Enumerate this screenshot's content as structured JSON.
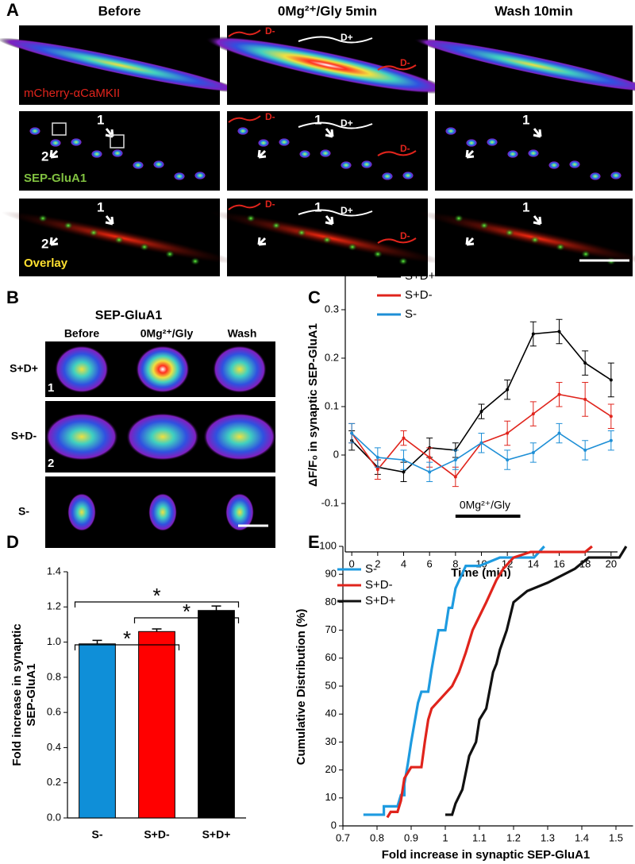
{
  "panel_labels": [
    "A",
    "B",
    "C",
    "D",
    "E"
  ],
  "panel_a": {
    "columns": [
      "Before",
      "0Mg²⁺/Gly 5min",
      "Wash 10min"
    ],
    "rows": [
      "mCherry-αCaMKII",
      "SEP-GluA1",
      "Overlay"
    ],
    "arrow_labels": [
      "1",
      "2"
    ],
    "dendrite_labels": [
      "D+",
      "D-"
    ]
  },
  "panel_b": {
    "title": "SEP-GluA1",
    "columns": [
      "Before",
      "0Mg²⁺/Gly",
      "Wash"
    ],
    "rows": [
      "S+D+",
      "S+D-",
      "S-"
    ],
    "spine_labels": [
      "1",
      "2"
    ]
  },
  "chart_data": [
    {
      "type": "line",
      "xlabel": "Time (min)",
      "ylabel": "ΔF/F₀ in synaptic SEP-GluA1",
      "x": [
        0,
        2,
        4,
        6,
        8,
        10,
        12,
        14,
        16,
        18,
        20
      ],
      "xlim": [
        -0.5,
        20.5
      ],
      "xticks": [
        0,
        2,
        4,
        6,
        8,
        10,
        12,
        14,
        16,
        18,
        20
      ],
      "ylim": [
        -0.2,
        0.4
      ],
      "yticks": [
        -0.1,
        0,
        0.1,
        0.2,
        0.3
      ],
      "legend": "upper left",
      "markers": true,
      "series": [
        {
          "name": "S+D+",
          "color": "#000000",
          "values": [
            0.03,
            -0.025,
            -0.035,
            0.015,
            0.01,
            0.09,
            0.135,
            0.25,
            0.255,
            0.19,
            0.155
          ],
          "errors": [
            0.02,
            0.015,
            0.02,
            0.02,
            0.015,
            0.015,
            0.02,
            0.025,
            0.025,
            0.025,
            0.035
          ]
        },
        {
          "name": "S+D-",
          "color": "#e0241c",
          "values": [
            0.045,
            -0.03,
            0.035,
            -0.005,
            -0.045,
            0.025,
            0.045,
            0.085,
            0.125,
            0.115,
            0.08
          ],
          "errors": [
            0.02,
            0.02,
            0.015,
            0.02,
            0.02,
            0.02,
            0.025,
            0.025,
            0.025,
            0.035,
            0.025
          ]
        },
        {
          "name": "S-",
          "color": "#1e8fd6",
          "values": [
            0.045,
            -0.005,
            -0.01,
            -0.035,
            -0.01,
            0.025,
            -0.01,
            0.005,
            0.045,
            0.01,
            0.03
          ],
          "errors": [
            0.02,
            0.02,
            0.02,
            0.02,
            0.02,
            0.02,
            0.02,
            0.02,
            0.02,
            0.02,
            0.02
          ]
        }
      ],
      "annotation": {
        "text": "0Mg²⁺/Gly",
        "xrange": [
          8,
          13
        ]
      }
    },
    {
      "type": "bar",
      "ylabel": [
        "Fold increase in synaptic",
        "SEP-GluA1"
      ],
      "categories": [
        "S-",
        "S+D-",
        "S+D+"
      ],
      "values": [
        0.99,
        1.06,
        1.18
      ],
      "errors": [
        0.02,
        0.015,
        0.025
      ],
      "colors": [
        "#0f8fd8",
        "#ff0000",
        "#000000"
      ],
      "ylim": [
        0,
        1.4
      ],
      "yticks": [
        {
          "value": 0,
          "label": "0.0"
        },
        0.2,
        0.4,
        0.6,
        0.8,
        {
          "value": 1,
          "label": "1.0"
        },
        1.2,
        1.4
      ],
      "annotations": [
        "*",
        "*",
        "*"
      ]
    },
    {
      "type": "line",
      "xlabel": "Fold increase in synaptic SEP-GluA1",
      "ylabel": "Cumulative Distribution (%)",
      "xlim": [
        0.7,
        1.55
      ],
      "xticks": [
        0.7,
        0.8,
        0.9,
        1,
        1.1,
        1.2,
        1.3,
        1.4,
        1.5
      ],
      "ylim": [
        0,
        100
      ],
      "yticks": [
        0,
        10,
        20,
        30,
        40,
        50,
        60,
        70,
        80,
        90,
        100
      ],
      "legend": "upper left",
      "markers": false,
      "series": [
        {
          "name": "S-",
          "color": "#1e9be0",
          "x": [
            0.76,
            0.82,
            0.82,
            0.86,
            0.87,
            0.88,
            0.88,
            0.89,
            0.9,
            0.91,
            0.92,
            0.93,
            0.95,
            0.96,
            0.97,
            0.98,
            1.0,
            1.01,
            1.02,
            1.03,
            1.06,
            1.1,
            1.16,
            1.26,
            1.29
          ],
          "values": [
            4,
            4,
            7,
            7,
            11,
            11,
            15,
            22,
            30,
            37,
            44,
            48,
            48,
            56,
            63,
            70,
            70,
            78,
            78,
            85,
            93,
            93,
            96,
            96,
            100
          ]
        },
        {
          "name": "S+D-",
          "color": "#e0241c",
          "x": [
            0.83,
            0.84,
            0.86,
            0.87,
            0.88,
            0.9,
            0.93,
            0.94,
            0.95,
            0.96,
            0.99,
            1.02,
            1.04,
            1.06,
            1.08,
            1.1,
            1.12,
            1.15,
            1.17,
            1.2,
            1.25,
            1.41,
            1.43
          ],
          "values": [
            3,
            5,
            5,
            9,
            17,
            21,
            21,
            30,
            38,
            42,
            46,
            50,
            55,
            62,
            70,
            75,
            80,
            88,
            92,
            96,
            98,
            98,
            100
          ]
        },
        {
          "name": "S+D+",
          "color": "#111111",
          "x": [
            1.0,
            1.02,
            1.03,
            1.05,
            1.07,
            1.09,
            1.1,
            1.12,
            1.14,
            1.15,
            1.16,
            1.18,
            1.2,
            1.24,
            1.3,
            1.38,
            1.42,
            1.51,
            1.53
          ],
          "values": [
            4,
            4,
            8,
            13,
            25,
            30,
            38,
            42,
            55,
            58,
            63,
            70,
            80,
            84,
            87,
            92,
            96,
            96,
            100
          ]
        }
      ]
    }
  ]
}
